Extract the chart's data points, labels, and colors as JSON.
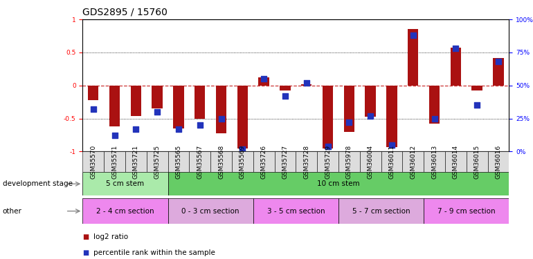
{
  "title": "GDS2895 / 15760",
  "samples": [
    "GSM35570",
    "GSM35571",
    "GSM35721",
    "GSM35725",
    "GSM35565",
    "GSM35567",
    "GSM35568",
    "GSM35569",
    "GSM35726",
    "GSM35727",
    "GSM35728",
    "GSM35729",
    "GSM35978",
    "GSM36004",
    "GSM36011",
    "GSM36012",
    "GSM36013",
    "GSM36014",
    "GSM36015",
    "GSM36016"
  ],
  "log2_ratio": [
    -0.22,
    -0.62,
    -0.46,
    -0.35,
    -0.65,
    -0.5,
    -0.72,
    -0.95,
    0.12,
    -0.08,
    0.02,
    -0.95,
    -0.7,
    -0.47,
    -0.93,
    0.85,
    -0.58,
    0.57,
    -0.08,
    0.42
  ],
  "percentile": [
    32,
    12,
    17,
    30,
    17,
    20,
    25,
    2,
    55,
    42,
    52,
    4,
    22,
    27,
    5,
    88,
    25,
    78,
    35,
    68
  ],
  "bar_color": "#aa1111",
  "dot_color": "#2233bb",
  "bg_color": "#ffffff",
  "zero_line_color": "#cc3333",
  "ylim_left": [
    -1.0,
    1.0
  ],
  "ylim_right": [
    0,
    100
  ],
  "yticks_left": [
    -1.0,
    -0.5,
    0.0,
    0.5,
    1.0
  ],
  "ytick_labels_left": [
    "-1",
    "-0.5",
    "0",
    "0.5",
    "1"
  ],
  "yticks_right": [
    0,
    25,
    50,
    75,
    100
  ],
  "ytick_labels_right": [
    "0%",
    "25%",
    "50%",
    "75%",
    "100%"
  ],
  "dev_stage_groups": [
    {
      "label": "5 cm stem",
      "start": 0,
      "end": 4,
      "color": "#aaeaaa"
    },
    {
      "label": "10 cm stem",
      "start": 4,
      "end": 20,
      "color": "#66cc66"
    }
  ],
  "other_groups": [
    {
      "label": "2 - 4 cm section",
      "start": 0,
      "end": 4,
      "color": "#ee88ee"
    },
    {
      "label": "0 - 3 cm section",
      "start": 4,
      "end": 8,
      "color": "#ddaadd"
    },
    {
      "label": "3 - 5 cm section",
      "start": 8,
      "end": 12,
      "color": "#ee88ee"
    },
    {
      "label": "5 - 7 cm section",
      "start": 12,
      "end": 16,
      "color": "#ddaadd"
    },
    {
      "label": "7 - 9 cm section",
      "start": 16,
      "end": 20,
      "color": "#ee88ee"
    }
  ],
  "bar_width": 0.5,
  "dot_size": 30,
  "legend_red": "log2 ratio",
  "legend_blue": "percentile rank within the sample",
  "dev_stage_label": "development stage",
  "other_label": "other",
  "title_fontsize": 10,
  "tick_fontsize": 6.5,
  "label_fontsize": 7.5,
  "group_fontsize": 7.5,
  "xtick_fontsize": 6.5
}
